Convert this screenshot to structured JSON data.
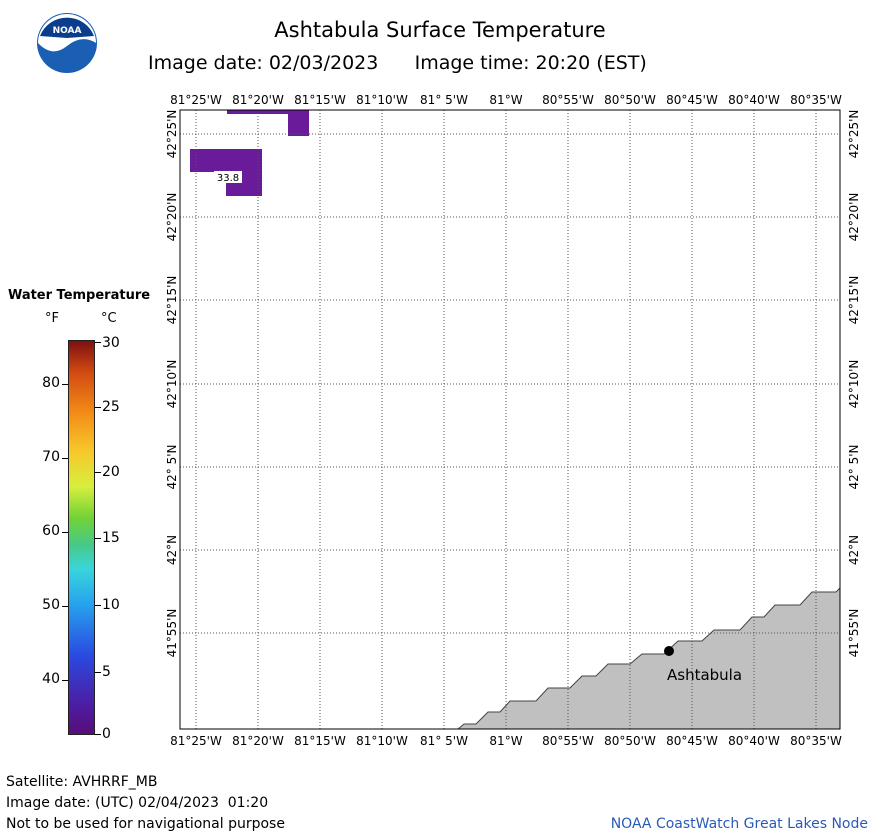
{
  "header": {
    "title": "Ashtabula Surface Temperature",
    "image_date": "Image date: 02/03/2023",
    "image_time": "Image time: 20:20 (EST)"
  },
  "logo": {
    "icon": "noaa-logo-icon",
    "text": "NOAA"
  },
  "legend": {
    "title": "Water Temperature",
    "unit_f": "°F",
    "unit_c": "°C",
    "f_ticks": [
      "80",
      "70",
      "60",
      "50",
      "40"
    ],
    "c_ticks": [
      "30",
      "25",
      "20",
      "15",
      "10",
      "5",
      "0"
    ]
  },
  "map": {
    "lon_labels": [
      "81°25'W",
      "81°20'W",
      "81°15'W",
      "81°10'W",
      "81° 5'W",
      "81°W",
      "80°55'W",
      "80°50'W",
      "80°45'W",
      "80°40'W",
      "80°35'W"
    ],
    "lat_labels": [
      "42°25'N",
      "42°20'N",
      "42°15'N",
      "42°10'N",
      "42° 5'N",
      "42°N",
      "41°55'N"
    ],
    "temp_readout": "33.8",
    "city": "Ashtabula",
    "land_color": "#c0c0c0",
    "water_sample_color": "#6a1b9a"
  },
  "footer": {
    "satellite": "Satellite: AVHRRF_MB",
    "utc_date": "Image date: (UTC) 02/04/2023  01:20",
    "warning": "Not to be used for navigational purpose",
    "credit": "NOAA CoastWatch Great Lakes Node"
  }
}
